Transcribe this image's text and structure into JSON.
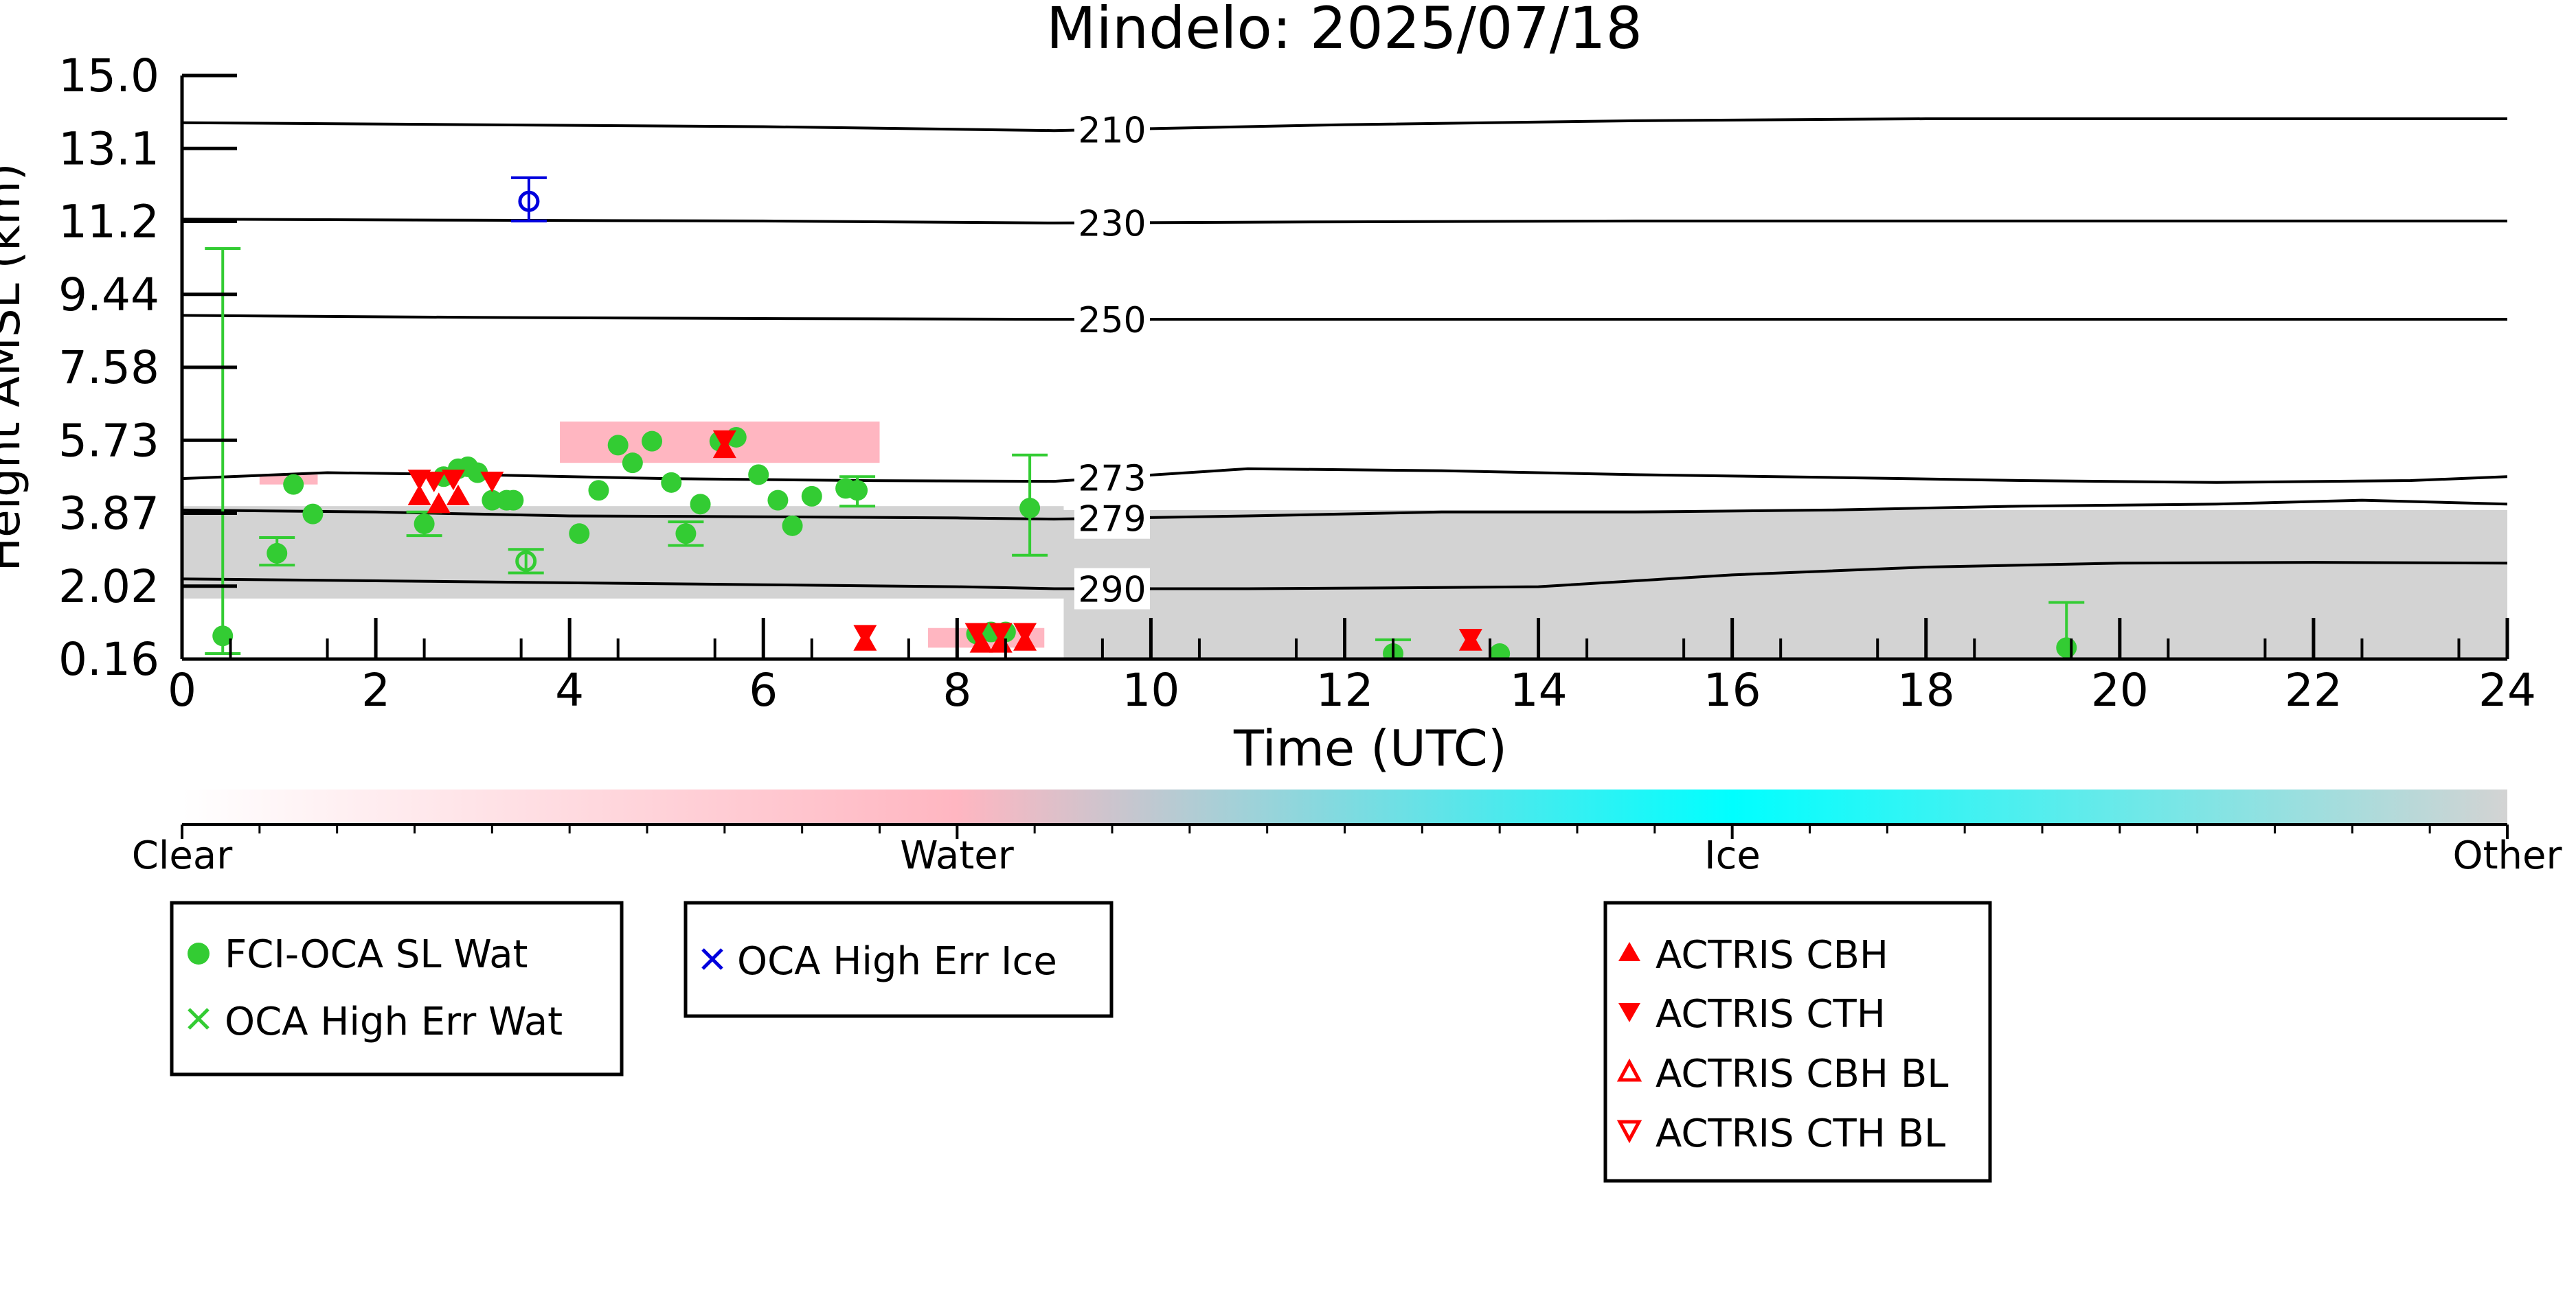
{
  "chart_data": {
    "type": "scatter",
    "title": "Mindelo: 2025/07/18",
    "xlabel": "Time (UTC)",
    "ylabel": "Height AMSL (km)",
    "xlim": [
      0,
      24
    ],
    "ylim": [
      0.16,
      15.0
    ],
    "x_ticks": [
      "0",
      "2",
      "4",
      "6",
      "8",
      "10",
      "12",
      "14",
      "16",
      "18",
      "20",
      "22",
      "24"
    ],
    "y_ticks": [
      "0.16",
      "2.02",
      "3.87",
      "5.73",
      "7.58",
      "9.44",
      "11.2",
      "13.1",
      "15.0"
    ],
    "grid": false,
    "temperature_contours": [
      {
        "label": "210",
        "points": [
          [
            0,
            13.8
          ],
          [
            3,
            13.75
          ],
          [
            6,
            13.7
          ],
          [
            9,
            13.6
          ],
          [
            12,
            13.75
          ],
          [
            15,
            13.85
          ],
          [
            18,
            13.9
          ],
          [
            21,
            13.9
          ],
          [
            24,
            13.9
          ]
        ]
      },
      {
        "label": "230",
        "points": [
          [
            0,
            11.35
          ],
          [
            3,
            11.32
          ],
          [
            6,
            11.3
          ],
          [
            9,
            11.25
          ],
          [
            12,
            11.28
          ],
          [
            15,
            11.3
          ],
          [
            18,
            11.3
          ],
          [
            21,
            11.3
          ],
          [
            24,
            11.3
          ]
        ]
      },
      {
        "label": "250",
        "points": [
          [
            0,
            8.9
          ],
          [
            3,
            8.85
          ],
          [
            6,
            8.82
          ],
          [
            9,
            8.8
          ],
          [
            12,
            8.8
          ],
          [
            15,
            8.8
          ],
          [
            18,
            8.8
          ],
          [
            21,
            8.8
          ],
          [
            24,
            8.8
          ]
        ]
      },
      {
        "label": "273",
        "points": [
          [
            0,
            4.75
          ],
          [
            1.5,
            4.9
          ],
          [
            3,
            4.85
          ],
          [
            5,
            4.75
          ],
          [
            7,
            4.7
          ],
          [
            9,
            4.68
          ],
          [
            11,
            5.0
          ],
          [
            13,
            4.95
          ],
          [
            15,
            4.85
          ],
          [
            17,
            4.78
          ],
          [
            19,
            4.7
          ],
          [
            21,
            4.65
          ],
          [
            23,
            4.7
          ],
          [
            24,
            4.8
          ]
        ]
      },
      {
        "label": "279",
        "points": [
          [
            0,
            3.95
          ],
          [
            2,
            3.9
          ],
          [
            4,
            3.8
          ],
          [
            6,
            3.78
          ],
          [
            8,
            3.75
          ],
          [
            9,
            3.72
          ],
          [
            11,
            3.8
          ],
          [
            13,
            3.9
          ],
          [
            15,
            3.9
          ],
          [
            17,
            3.95
          ],
          [
            19,
            4.05
          ],
          [
            21,
            4.1
          ],
          [
            22.5,
            4.2
          ],
          [
            24,
            4.1
          ]
        ]
      },
      {
        "label": "290",
        "points": [
          [
            0,
            2.2
          ],
          [
            2,
            2.15
          ],
          [
            4,
            2.1
          ],
          [
            6,
            2.05
          ],
          [
            8,
            2.0
          ],
          [
            9,
            1.95
          ],
          [
            11,
            1.95
          ],
          [
            13,
            1.98
          ],
          [
            14,
            2.0
          ],
          [
            16,
            2.3
          ],
          [
            18,
            2.5
          ],
          [
            20,
            2.6
          ],
          [
            22,
            2.62
          ],
          [
            24,
            2.6
          ]
        ]
      }
    ],
    "series": [
      {
        "name": "FCI-OCA SL Wat",
        "marker": "filled-circle",
        "color": "#33cc33",
        "points": [
          [
            0.42,
            0.75
          ],
          [
            0.98,
            2.85
          ],
          [
            1.15,
            4.6
          ],
          [
            1.35,
            3.85
          ],
          [
            2.5,
            3.6
          ],
          [
            2.7,
            4.8
          ],
          [
            2.85,
            5.0
          ],
          [
            2.95,
            5.05
          ],
          [
            3.05,
            4.9
          ],
          [
            3.2,
            4.2
          ],
          [
            3.35,
            4.2
          ],
          [
            3.42,
            4.2
          ],
          [
            4.1,
            3.35
          ],
          [
            4.3,
            4.45
          ],
          [
            4.5,
            5.6
          ],
          [
            4.65,
            5.15
          ],
          [
            4.85,
            5.7
          ],
          [
            5.05,
            4.65
          ],
          [
            5.2,
            3.35
          ],
          [
            5.35,
            4.1
          ],
          [
            5.55,
            5.7
          ],
          [
            5.72,
            5.8
          ],
          [
            5.95,
            4.85
          ],
          [
            6.15,
            4.2
          ],
          [
            6.3,
            3.55
          ],
          [
            6.5,
            4.3
          ],
          [
            6.85,
            4.5
          ],
          [
            6.97,
            4.45
          ],
          [
            8.2,
            0.8
          ],
          [
            8.35,
            0.85
          ],
          [
            8.5,
            0.85
          ],
          [
            8.75,
            4.0
          ],
          [
            12.5,
            0.3
          ],
          [
            13.6,
            0.3
          ],
          [
            19.45,
            0.45
          ]
        ]
      },
      {
        "name": "OCA High Err Wat",
        "marker": "x",
        "color": "#33cc33",
        "points": [
          [
            3.55,
            2.65
          ]
        ]
      },
      {
        "name": "OCA High Err Ice",
        "marker": "x",
        "color": "#0000dd",
        "points": [
          [
            3.58,
            11.8
          ]
        ]
      },
      {
        "name": "ACTRIS CBH",
        "marker": "triangle-up",
        "color": "#ff0000",
        "points": [
          [
            2.45,
            4.3
          ],
          [
            2.65,
            4.1
          ],
          [
            2.85,
            4.3
          ],
          [
            5.6,
            5.5
          ],
          [
            7.05,
            0.6
          ],
          [
            8.25,
            0.55
          ],
          [
            8.45,
            0.55
          ],
          [
            8.7,
            0.6
          ],
          [
            13.3,
            0.6
          ]
        ]
      },
      {
        "name": "ACTRIS CTH",
        "marker": "triangle-down",
        "color": "#ff0000",
        "points": [
          [
            2.45,
            4.75
          ],
          [
            2.6,
            4.7
          ],
          [
            2.8,
            4.75
          ],
          [
            3.2,
            4.7
          ],
          [
            5.6,
            5.75
          ],
          [
            7.05,
            0.8
          ],
          [
            8.2,
            0.85
          ],
          [
            8.45,
            0.85
          ],
          [
            8.7,
            0.85
          ],
          [
            13.3,
            0.7
          ]
        ]
      },
      {
        "name": "ACTRIS CBH BL",
        "marker": "triangle-up-open",
        "color": "#ff0000",
        "points": []
      },
      {
        "name": "ACTRIS CTH BL",
        "marker": "triangle-down-open",
        "color": "#ff0000",
        "points": []
      }
    ],
    "error_bars": [
      {
        "x": 0.42,
        "ylow": 0.3,
        "yhigh": 10.6,
        "color": "#33cc33"
      },
      {
        "x": 0.98,
        "ylow": 2.55,
        "yhigh": 3.25,
        "color": "#33cc33"
      },
      {
        "x": 2.5,
        "ylow": 3.3,
        "yhigh": 3.9,
        "color": "#33cc33"
      },
      {
        "x": 3.55,
        "ylow": 2.35,
        "yhigh": 2.95,
        "color": "#33cc33"
      },
      {
        "x": 5.2,
        "ylow": 3.05,
        "yhigh": 3.65,
        "color": "#33cc33"
      },
      {
        "x": 6.97,
        "ylow": 4.05,
        "yhigh": 4.8,
        "color": "#33cc33"
      },
      {
        "x": 8.75,
        "ylow": 2.8,
        "yhigh": 5.35,
        "color": "#33cc33"
      },
      {
        "x": 12.5,
        "ylow": 0.16,
        "yhigh": 0.65,
        "color": "#33cc33"
      },
      {
        "x": 19.45,
        "ylow": 0.16,
        "yhigh": 1.6,
        "color": "#33cc33"
      },
      {
        "x": 3.58,
        "ylow": 11.3,
        "yhigh": 12.4,
        "color": "#0000dd"
      }
    ],
    "background_phase": [
      {
        "x0": 0.0,
        "x1": 9.1,
        "y0": 1.7,
        "y1": 4.05,
        "phase": "Other"
      },
      {
        "x0": 9.1,
        "x1": 24.0,
        "y0": 0.2,
        "y1": 3.95,
        "phase": "Other"
      },
      {
        "x0": 0.8,
        "x1": 1.4,
        "y0": 4.6,
        "y1": 4.85,
        "phase": "Water"
      },
      {
        "x0": 3.9,
        "x1": 7.2,
        "y0": 5.15,
        "y1": 6.2,
        "phase": "Water"
      },
      {
        "x0": 7.7,
        "x1": 8.9,
        "y0": 0.45,
        "y1": 0.95,
        "phase": "Water"
      }
    ],
    "colorbar": {
      "labels": [
        "Clear",
        "Water",
        "Ice",
        "Other"
      ],
      "colors": [
        "#ffffff",
        "#ffb6c1",
        "#00ffff",
        "#d3d3d3"
      ]
    },
    "legend_groups": [
      [
        "FCI-OCA SL Wat",
        "OCA High Err Wat"
      ],
      [
        "OCA High Err Ice"
      ],
      [
        "ACTRIS CBH",
        "ACTRIS CTH",
        "ACTRIS CBH BL",
        "ACTRIS CTH BL"
      ]
    ]
  }
}
